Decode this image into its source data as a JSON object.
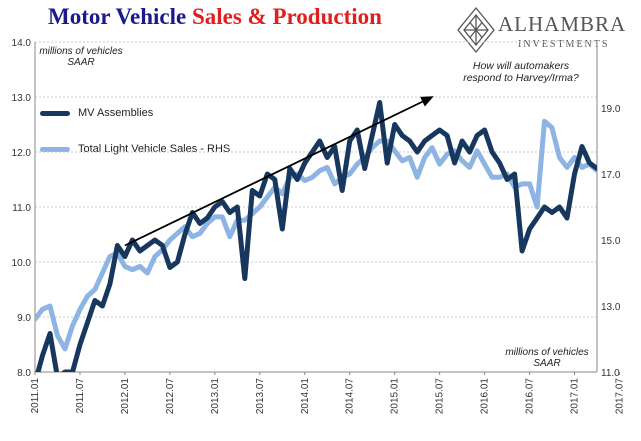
{
  "header": {
    "title_part1": "Motor Vehicle ",
    "title_part2": "Sales & Production",
    "logo_text": "ALHAMBRA",
    "logo_sub": "INVESTMENTS"
  },
  "notes": {
    "left_unit_line1": "millions of vehicles",
    "left_unit_line2": "SAAR",
    "right_unit_line1": "millions of vehicles",
    "right_unit_line2": "SAAR",
    "question_line1": "How will automakers",
    "question_line2": "respond to Harvey/Irma?"
  },
  "colors": {
    "mv_assemblies": "#17375e",
    "light_vehicle_sales": "#8db4e2",
    "title_blue": "#1a1a8c",
    "title_red": "#e02020"
  },
  "chart_data": {
    "type": "line",
    "x_labels": [
      "2011.01",
      "2011.07",
      "2012.01",
      "2012.07",
      "2013.01",
      "2013.07",
      "2014.01",
      "2014.07",
      "2015.01",
      "2015.07",
      "2016.01",
      "2016.07",
      "2017.01",
      "2017.07",
      "2018.01"
    ],
    "y_left": {
      "ticks": [
        "8.0",
        "9.0",
        "10.0",
        "11.0",
        "12.0",
        "13.0",
        "14.0"
      ],
      "ylim": [
        8,
        14
      ]
    },
    "y_right": {
      "ticks": [
        "11.0",
        "13.0",
        "15.0",
        "17.0",
        "19.0"
      ],
      "ylim": [
        11,
        21
      ]
    },
    "grid": true,
    "legend_position": "top-left",
    "series": [
      {
        "name": "MV Assemblies",
        "axis": "left",
        "values": [
          7.8,
          8.3,
          8.7,
          7.9,
          8.0,
          8.0,
          8.5,
          8.9,
          9.3,
          9.2,
          9.6,
          10.3,
          10.1,
          10.4,
          10.2,
          10.3,
          10.4,
          10.3,
          9.9,
          10.0,
          10.5,
          10.9,
          10.7,
          10.8,
          11.0,
          11.1,
          10.9,
          11.0,
          9.7,
          11.3,
          11.2,
          11.6,
          11.5,
          10.6,
          11.7,
          11.5,
          11.8,
          12.0,
          12.2,
          11.9,
          12.1,
          11.3,
          12.2,
          12.4,
          11.7,
          12.3,
          12.9,
          11.8,
          12.5,
          12.3,
          12.2,
          12.0,
          12.2,
          12.3,
          12.4,
          12.3,
          11.8,
          12.2,
          12.0,
          12.3,
          12.4,
          12.0,
          11.8,
          11.5,
          11.6,
          10.2,
          10.6,
          10.8,
          11.0,
          10.9,
          11.0,
          10.8,
          11.6,
          12.1,
          11.8,
          11.7
        ]
      },
      {
        "name": "Total Light Vehicle Sales - RHS",
        "axis": "right",
        "values": [
          12.6,
          12.9,
          13.0,
          12.1,
          11.7,
          12.4,
          12.9,
          13.3,
          13.5,
          14.0,
          14.5,
          14.6,
          14.2,
          14.1,
          14.2,
          14.0,
          14.5,
          14.7,
          15.0,
          15.2,
          15.4,
          15.1,
          15.2,
          15.5,
          15.7,
          15.7,
          15.1,
          15.6,
          15.6,
          15.8,
          16.0,
          16.3,
          16.6,
          16.4,
          16.9,
          17.0,
          16.8,
          16.9,
          17.1,
          17.2,
          16.7,
          16.9,
          17.0,
          17.3,
          17.5,
          17.8,
          18.0,
          18.0,
          17.7,
          17.4,
          17.5,
          16.9,
          17.5,
          17.8,
          17.3,
          17.6,
          17.7,
          17.4,
          17.2,
          17.7,
          17.3,
          16.9,
          16.9,
          17.0,
          16.6,
          16.7,
          16.7,
          16.0,
          18.6,
          18.4,
          17.5,
          17.2,
          17.5,
          17.2,
          17.3,
          17.1
        ]
      }
    ],
    "annotations": [
      "How will automakers respond to Harvey/Irma?"
    ]
  }
}
